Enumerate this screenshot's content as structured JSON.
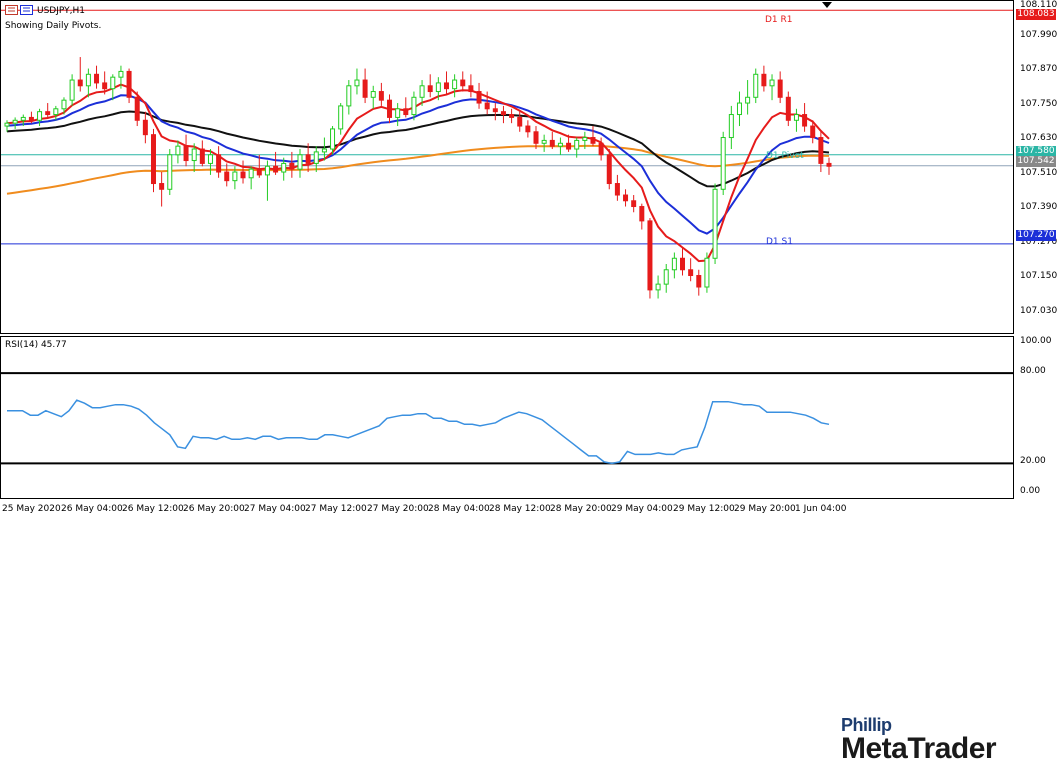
{
  "window": {
    "symbol_timeframe": "USDJPY,H1",
    "status_text": "Showing Daily Pivots."
  },
  "colors": {
    "bull": "#22cc22",
    "bear": "#e61b1b",
    "ma_fast": "#e61b1b",
    "ma_mid": "#1c2fd8",
    "ma_slow": "#111111",
    "ma_long": "#f08c1e",
    "pivot_line": "#2ab5a5",
    "r1_line": "#e61b1b",
    "s1_line": "#1c2fd8",
    "rsi_line": "#3a90e0",
    "price_tag_current": "#888888"
  },
  "pivots": {
    "r1": {
      "label": "D1 R1",
      "value": 108.083,
      "tag": "108.083"
    },
    "pivot": {
      "label": "D1 Pivot",
      "value": 107.58,
      "tag": "107.580"
    },
    "s1": {
      "label": "D1 S1",
      "value": 107.27,
      "tag": "107.270"
    },
    "current_tag": "107.542"
  },
  "logo": {
    "top": "Phillip",
    "bottom": "MetaTrader"
  },
  "chart_data": [
    {
      "type": "candlestick",
      "title": "USDJPY,H1",
      "y_ticks": [
        "108.110",
        "107.990",
        "107.870",
        "107.750",
        "107.630",
        "107.510",
        "107.390",
        "107.270",
        "107.150",
        "107.030"
      ],
      "y_tick_values": [
        108.11,
        107.99,
        107.87,
        107.75,
        107.63,
        107.51,
        107.39,
        107.27,
        107.15,
        107.03
      ],
      "ylim": [
        106.96,
        108.115
      ],
      "x_ticks": [
        "25 May 2020",
        "26 May 04:00",
        "26 May 12:00",
        "26 May 20:00",
        "27 May 04:00",
        "27 May 12:00",
        "27 May 20:00",
        "28 May 04:00",
        "28 May 12:00",
        "28 May 20:00",
        "29 May 04:00",
        "29 May 12:00",
        "29 May 20:00",
        "1 Jun 04:00"
      ],
      "candles": [
        [
          107.68,
          107.7,
          107.66,
          107.69
        ],
        [
          107.69,
          107.71,
          107.67,
          107.7
        ],
        [
          107.7,
          107.72,
          107.68,
          107.71
        ],
        [
          107.71,
          107.73,
          107.69,
          107.7
        ],
        [
          107.7,
          107.74,
          107.68,
          107.73
        ],
        [
          107.73,
          107.76,
          107.71,
          107.72
        ],
        [
          107.72,
          107.75,
          107.7,
          107.74
        ],
        [
          107.74,
          107.78,
          107.72,
          107.77
        ],
        [
          107.77,
          107.86,
          107.75,
          107.84
        ],
        [
          107.84,
          107.92,
          107.8,
          107.82
        ],
        [
          107.82,
          107.88,
          107.78,
          107.86
        ],
        [
          107.86,
          107.89,
          107.81,
          107.83
        ],
        [
          107.83,
          107.87,
          107.79,
          107.81
        ],
        [
          107.81,
          107.86,
          107.77,
          107.85
        ],
        [
          107.85,
          107.89,
          107.81,
          107.87
        ],
        [
          107.87,
          107.88,
          107.76,
          107.78
        ],
        [
          107.78,
          107.8,
          107.68,
          107.7
        ],
        [
          107.7,
          107.73,
          107.62,
          107.65
        ],
        [
          107.65,
          107.67,
          107.45,
          107.48
        ],
        [
          107.48,
          107.52,
          107.4,
          107.46
        ],
        [
          107.46,
          107.6,
          107.44,
          107.58
        ],
        [
          107.58,
          107.63,
          107.55,
          107.61
        ],
        [
          107.61,
          107.65,
          107.54,
          107.56
        ],
        [
          107.56,
          107.62,
          107.52,
          107.6
        ],
        [
          107.6,
          107.63,
          107.54,
          107.55
        ],
        [
          107.55,
          107.6,
          107.51,
          107.58
        ],
        [
          107.58,
          107.61,
          107.5,
          107.52
        ],
        [
          107.52,
          107.55,
          107.47,
          107.49
        ],
        [
          107.49,
          107.54,
          107.46,
          107.52
        ],
        [
          107.52,
          107.56,
          107.48,
          107.5
        ],
        [
          107.5,
          107.54,
          107.46,
          107.53
        ],
        [
          107.53,
          107.58,
          107.5,
          107.51
        ],
        [
          107.51,
          107.56,
          107.42,
          107.54
        ],
        [
          107.54,
          107.59,
          107.51,
          107.52
        ],
        [
          107.52,
          107.57,
          107.49,
          107.55
        ],
        [
          107.55,
          107.59,
          107.5,
          107.53
        ],
        [
          107.53,
          107.6,
          107.5,
          107.58
        ],
        [
          107.58,
          107.62,
          107.52,
          107.55
        ],
        [
          107.55,
          107.61,
          107.52,
          107.59
        ],
        [
          107.59,
          107.64,
          107.56,
          107.6
        ],
        [
          107.6,
          107.68,
          107.58,
          107.67
        ],
        [
          107.67,
          107.76,
          107.65,
          107.75
        ],
        [
          107.75,
          107.84,
          107.72,
          107.82
        ],
        [
          107.82,
          107.88,
          107.79,
          107.84
        ],
        [
          107.84,
          107.88,
          107.76,
          107.78
        ],
        [
          107.78,
          107.82,
          107.74,
          107.8
        ],
        [
          107.8,
          107.83,
          107.75,
          107.77
        ],
        [
          107.77,
          107.79,
          107.69,
          107.71
        ],
        [
          107.71,
          107.76,
          107.68,
          107.74
        ],
        [
          107.74,
          107.78,
          107.71,
          107.72
        ],
        [
          107.72,
          107.8,
          107.7,
          107.78
        ],
        [
          107.78,
          107.84,
          107.75,
          107.82
        ],
        [
          107.82,
          107.86,
          107.78,
          107.8
        ],
        [
          107.8,
          107.85,
          107.77,
          107.83
        ],
        [
          107.83,
          107.87,
          107.79,
          107.81
        ],
        [
          107.81,
          107.86,
          107.78,
          107.84
        ],
        [
          107.84,
          107.87,
          107.8,
          107.82
        ],
        [
          107.82,
          107.86,
          107.78,
          107.8
        ],
        [
          107.8,
          107.83,
          107.74,
          107.76
        ],
        [
          107.76,
          107.8,
          107.72,
          107.74
        ],
        [
          107.74,
          107.76,
          107.7,
          107.73
        ],
        [
          107.73,
          107.75,
          107.69,
          107.72
        ],
        [
          107.72,
          107.74,
          107.69,
          107.71
        ],
        [
          107.71,
          107.73,
          107.66,
          107.68
        ],
        [
          107.68,
          107.7,
          107.64,
          107.66
        ],
        [
          107.66,
          107.68,
          107.6,
          107.62
        ],
        [
          107.62,
          107.65,
          107.59,
          107.63
        ],
        [
          107.63,
          107.66,
          107.6,
          107.61
        ],
        [
          107.61,
          107.64,
          107.58,
          107.62
        ],
        [
          107.62,
          107.65,
          107.59,
          107.6
        ],
        [
          107.6,
          107.64,
          107.57,
          107.63
        ],
        [
          107.63,
          107.66,
          107.6,
          107.64
        ],
        [
          107.64,
          107.68,
          107.61,
          107.62
        ],
        [
          107.62,
          107.64,
          107.56,
          107.58
        ],
        [
          107.58,
          107.6,
          107.46,
          107.48
        ],
        [
          107.48,
          107.51,
          107.42,
          107.44
        ],
        [
          107.44,
          107.46,
          107.4,
          107.42
        ],
        [
          107.42,
          107.44,
          107.38,
          107.4
        ],
        [
          107.4,
          107.41,
          107.32,
          107.35
        ],
        [
          107.35,
          107.36,
          107.08,
          107.11
        ],
        [
          107.11,
          107.16,
          107.08,
          107.13
        ],
        [
          107.13,
          107.2,
          107.1,
          107.18
        ],
        [
          107.18,
          107.24,
          107.15,
          107.22
        ],
        [
          107.22,
          107.26,
          107.16,
          107.18
        ],
        [
          107.18,
          107.22,
          107.14,
          107.16
        ],
        [
          107.16,
          107.18,
          107.09,
          107.12
        ],
        [
          107.12,
          107.24,
          107.1,
          107.22
        ],
        [
          107.22,
          107.48,
          107.2,
          107.46
        ],
        [
          107.46,
          107.66,
          107.44,
          107.64
        ],
        [
          107.64,
          107.75,
          107.6,
          107.72
        ],
        [
          107.72,
          107.8,
          107.68,
          107.76
        ],
        [
          107.76,
          107.84,
          107.72,
          107.78
        ],
        [
          107.78,
          107.88,
          107.76,
          107.86
        ],
        [
          107.86,
          107.89,
          107.8,
          107.82
        ],
        [
          107.82,
          107.86,
          107.77,
          107.84
        ],
        [
          107.84,
          107.87,
          107.76,
          107.78
        ],
        [
          107.78,
          107.8,
          107.68,
          107.7
        ],
        [
          107.7,
          107.74,
          107.66,
          107.72
        ],
        [
          107.72,
          107.76,
          107.66,
          107.68
        ],
        [
          107.68,
          107.7,
          107.62,
          107.64
        ],
        [
          107.64,
          107.66,
          107.52,
          107.55
        ],
        [
          107.55,
          107.57,
          107.51,
          107.54
        ]
      ]
    },
    {
      "type": "line",
      "title": "RSI(14) 45.77",
      "y_ticks": [
        "100.00",
        "80.00",
        "20.00",
        "0.00"
      ],
      "y_tick_values": [
        100,
        80,
        20,
        0
      ],
      "levels": [
        80,
        20
      ],
      "ylim": [
        -3,
        104
      ],
      "values": [
        55,
        55,
        55,
        52,
        52,
        55,
        53,
        51,
        55,
        62,
        60,
        57,
        57,
        58,
        59,
        59,
        58,
        56,
        52,
        47,
        43,
        39,
        31,
        30,
        38,
        37,
        37,
        36,
        38,
        36,
        36,
        37,
        36,
        38,
        38,
        36,
        37,
        37,
        37,
        36,
        36,
        39,
        39,
        38,
        37,
        39,
        41,
        43,
        45,
        50,
        51,
        52,
        52,
        53,
        53,
        50,
        50,
        48,
        48,
        46,
        46,
        45,
        46,
        47,
        50,
        52,
        54,
        53,
        51,
        49,
        45,
        41,
        37,
        33,
        29,
        25,
        25,
        21,
        20,
        21,
        28,
        26,
        26,
        26,
        27,
        26,
        26,
        29,
        30,
        31,
        44,
        61,
        61,
        61,
        60,
        59,
        59,
        58,
        54,
        54,
        54,
        54,
        53,
        52,
        50,
        47,
        46
      ]
    }
  ]
}
